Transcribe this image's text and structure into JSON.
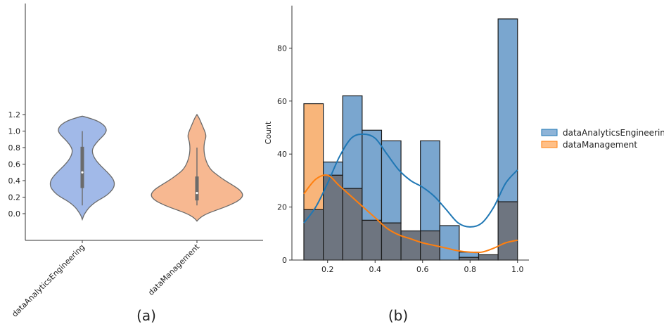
{
  "panels": {
    "a_label": "(a)",
    "b_label": "(b)"
  },
  "colors": {
    "violin_blue": "#a1b9e8",
    "violin_orange": "#f7b891",
    "hist_blue": "#1f77b4",
    "hist_orange": "#ff7f0e",
    "overlap": "#6e7580"
  },
  "chart_data": [
    {
      "type": "violin",
      "title": "",
      "categories": [
        "dataAnalyticsEngineering",
        "dataManagement"
      ],
      "ylim": [
        -0.1,
        1.22
      ],
      "yticks": [
        0.0,
        0.2,
        0.4,
        0.6,
        0.8,
        1.0,
        1.2
      ],
      "ytick_labels": [
        "0.0",
        "0.2",
        "0.4",
        "0.6",
        "0.8",
        "1.0",
        "1.2"
      ],
      "series": [
        {
          "category": "dataAnalyticsEngineering",
          "kde_range": [
            -0.07,
            1.18
          ],
          "box": {
            "whisker_low": 0.1,
            "q1": 0.31,
            "median": 0.5,
            "q3": 0.81,
            "whisker_high": 1.0
          }
        },
        {
          "category": "dataManagement",
          "kde_range": [
            -0.09,
            1.2
          ],
          "box": {
            "whisker_low": 0.1,
            "q1": 0.16,
            "median": 0.25,
            "q3": 0.45,
            "whisker_high": 0.8
          }
        }
      ]
    },
    {
      "type": "histogram",
      "ylabel": "Count",
      "xlabel": "",
      "xlim": [
        0.06,
        1.05
      ],
      "ylim": [
        0,
        96
      ],
      "xticks": [
        0.2,
        0.4,
        0.6,
        0.8,
        1.0
      ],
      "xtick_labels": [
        "0.2",
        "0.4",
        "0.6",
        "0.8",
        "1.0"
      ],
      "yticks": [
        0,
        20,
        40,
        60,
        80
      ],
      "ytick_labels": [
        "0",
        "20",
        "40",
        "60",
        "80"
      ],
      "bin_edges": [
        0.1,
        0.1818,
        0.2636,
        0.3455,
        0.4273,
        0.5091,
        0.5909,
        0.6727,
        0.7545,
        0.8364,
        0.9182,
        1.0
      ],
      "legend_position": "right",
      "series": [
        {
          "name": "dataAnalyticsEngineering",
          "counts": [
            19,
            37,
            62,
            49,
            45,
            11,
            45,
            13,
            3,
            2,
            91
          ],
          "kde": [
            [
              0.1,
              14
            ],
            [
              0.15,
              20
            ],
            [
              0.2,
              29
            ],
            [
              0.25,
              39
            ],
            [
              0.3,
              46
            ],
            [
              0.35,
              47.5
            ],
            [
              0.4,
              46
            ],
            [
              0.45,
              40
            ],
            [
              0.5,
              34
            ],
            [
              0.55,
              30
            ],
            [
              0.6,
              27.5
            ],
            [
              0.65,
              24
            ],
            [
              0.7,
              19
            ],
            [
              0.75,
              14
            ],
            [
              0.8,
              12.5
            ],
            [
              0.85,
              14
            ],
            [
              0.9,
              20
            ],
            [
              0.95,
              29
            ],
            [
              1.0,
              34
            ]
          ]
        },
        {
          "name": "dataManagement",
          "counts": [
            59,
            32,
            27,
            15,
            14,
            11,
            11,
            0,
            1,
            2,
            22
          ],
          "kde": [
            [
              0.1,
              25
            ],
            [
              0.15,
              30.5
            ],
            [
              0.2,
              32
            ],
            [
              0.25,
              28
            ],
            [
              0.3,
              24
            ],
            [
              0.35,
              20
            ],
            [
              0.4,
              16
            ],
            [
              0.45,
              12
            ],
            [
              0.5,
              9.5
            ],
            [
              0.55,
              8
            ],
            [
              0.6,
              6.5
            ],
            [
              0.65,
              5.5
            ],
            [
              0.7,
              4.5
            ],
            [
              0.75,
              3.5
            ],
            [
              0.8,
              3
            ],
            [
              0.85,
              3
            ],
            [
              0.9,
              4.5
            ],
            [
              0.95,
              6.5
            ],
            [
              1.0,
              7.5
            ]
          ]
        }
      ]
    }
  ]
}
